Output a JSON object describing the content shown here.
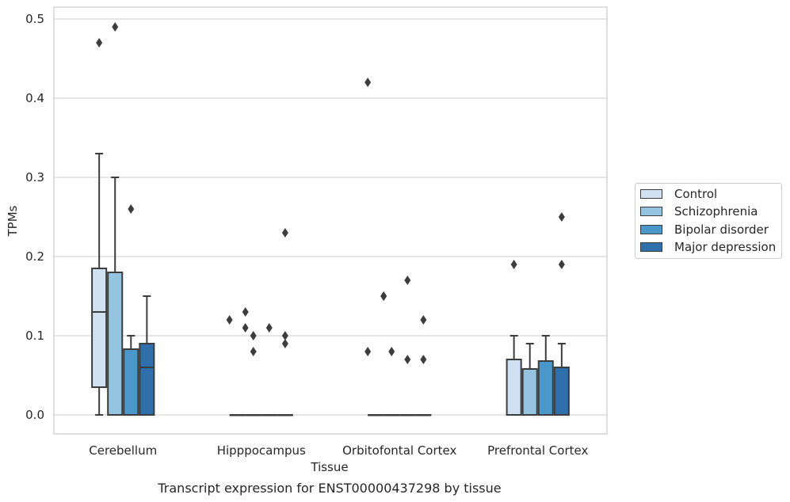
{
  "chart_data": {
    "type": "box",
    "title": "Transcript expression for ENST00000437298 by tissue",
    "xlabel": "Tissue",
    "ylabel": "TPMs",
    "ylim": [
      -0.024,
      0.515
    ],
    "yticks": [
      "0.0",
      "0.1",
      "0.2",
      "0.3",
      "0.4",
      "0.5"
    ],
    "grid": true,
    "legend_position": "right",
    "categories": [
      "Cerebellum",
      "Hipppocampus",
      "Orbitofontal Cortex",
      "Prefrontal Cortex"
    ],
    "series": [
      {
        "name": "Control",
        "color": "#d0e1f2",
        "boxes": [
          {
            "whisker_low": 0,
            "q1": 0.035,
            "median": 0.13,
            "q3": 0.185,
            "whisker_high": 0.33,
            "outliers": [
              0.47
            ]
          },
          {
            "whisker_low": 0,
            "q1": 0,
            "median": 0,
            "q3": 0,
            "whisker_high": 0,
            "outliers": [
              0.12,
              0.11
            ]
          },
          {
            "whisker_low": 0,
            "q1": 0,
            "median": 0,
            "q3": 0,
            "whisker_high": 0,
            "outliers": [
              0.42,
              0.15,
              0.08
            ]
          },
          {
            "whisker_low": 0,
            "q1": 0,
            "median": 0,
            "q3": 0.07,
            "whisker_high": 0.1,
            "outliers": [
              0.19
            ]
          }
        ]
      },
      {
        "name": "Schizophrenia",
        "color": "#94c4df",
        "boxes": [
          {
            "whisker_low": 0,
            "q1": 0,
            "median": 0,
            "q3": 0.18,
            "whisker_high": 0.3,
            "outliers": [
              0.49
            ]
          },
          {
            "whisker_low": 0,
            "q1": 0,
            "median": 0,
            "q3": 0,
            "whisker_high": 0,
            "outliers": [
              0.13,
              0.1,
              0.08
            ]
          },
          {
            "whisker_low": 0,
            "q1": 0,
            "median": 0,
            "q3": 0,
            "whisker_high": 0,
            "outliers": [
              0.15,
              0.08
            ]
          },
          {
            "whisker_low": 0,
            "q1": 0,
            "median": 0,
            "q3": 0.058,
            "whisker_high": 0.09,
            "outliers": []
          }
        ]
      },
      {
        "name": "Bipolar disorder",
        "color": "#4a98c9",
        "boxes": [
          {
            "whisker_low": 0,
            "q1": 0,
            "median": 0,
            "q3": 0.083,
            "whisker_high": 0.1,
            "outliers": [
              0.26
            ]
          },
          {
            "whisker_low": 0,
            "q1": 0,
            "median": 0,
            "q3": 0,
            "whisker_high": 0,
            "outliers": [
              0.11
            ]
          },
          {
            "whisker_low": 0,
            "q1": 0,
            "median": 0,
            "q3": 0,
            "whisker_high": 0,
            "outliers": [
              0.17,
              0.07
            ]
          },
          {
            "whisker_low": 0,
            "q1": 0,
            "median": 0,
            "q3": 0.068,
            "whisker_high": 0.1,
            "outliers": []
          }
        ]
      },
      {
        "name": "Major depression",
        "color": "#2e6fac",
        "boxes": [
          {
            "whisker_low": 0,
            "q1": 0,
            "median": 0.06,
            "q3": 0.09,
            "whisker_high": 0.15,
            "outliers": []
          },
          {
            "whisker_low": 0,
            "q1": 0,
            "median": 0,
            "q3": 0,
            "whisker_high": 0,
            "outliers": [
              0.23,
              0.1,
              0.09
            ]
          },
          {
            "whisker_low": 0,
            "q1": 0,
            "median": 0,
            "q3": 0,
            "whisker_high": 0,
            "outliers": [
              0.12,
              0.07
            ]
          },
          {
            "whisker_low": 0,
            "q1": 0,
            "median": 0,
            "q3": 0.06,
            "whisker_high": 0.09,
            "outliers": [
              0.25,
              0.19
            ]
          }
        ]
      }
    ]
  }
}
